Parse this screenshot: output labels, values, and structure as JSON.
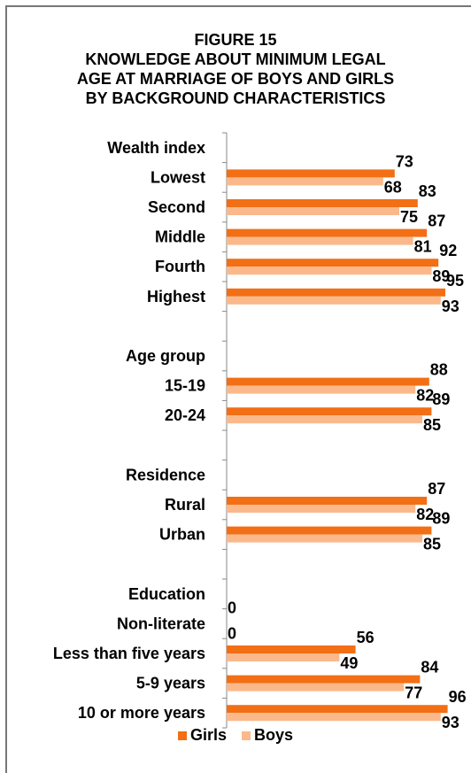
{
  "title_lines": [
    "FIGURE 15",
    "KNOWLEDGE ABOUT  MINIMUM LEGAL",
    "AGE AT MARRIAGE  OF BOYS AND GIRLS",
    "BY BACKGROUND CHARACTERISTICS"
  ],
  "colors": {
    "girls": "#f26f15",
    "boys": "#fbb98b",
    "axis": "#888888",
    "border": "#777777"
  },
  "chart_data": {
    "type": "bar",
    "orientation": "horizontal",
    "xlim": [
      0,
      100
    ],
    "grid": false,
    "legend_position": "bottom",
    "rows": [
      {
        "label": "Wealth index",
        "header": true
      },
      {
        "label": "Lowest",
        "girls": 73,
        "boys": 68
      },
      {
        "label": "Second",
        "girls": 83,
        "boys": 75
      },
      {
        "label": "Middle",
        "girls": 87,
        "boys": 81
      },
      {
        "label": "Fourth",
        "girls": 92,
        "boys": 89
      },
      {
        "label": "Highest",
        "girls": 95,
        "boys": 93
      },
      {
        "label": "",
        "spacer": true
      },
      {
        "label": "Age group ",
        "header": true
      },
      {
        "label": "15-19",
        "girls": 88,
        "boys": 82
      },
      {
        "label": "20-24",
        "girls": 89,
        "boys": 85
      },
      {
        "label": "",
        "spacer": true
      },
      {
        "label": "Residence",
        "header": true
      },
      {
        "label": "Rural",
        "girls": 87,
        "boys": 82
      },
      {
        "label": "Urban",
        "girls": 89,
        "boys": 85
      },
      {
        "label": "",
        "spacer": true
      },
      {
        "label": "Education",
        "header": true
      },
      {
        "label": "Non-literate",
        "girls": 0,
        "boys": 0
      },
      {
        "label": "Less than five years",
        "girls": 56,
        "boys": 49
      },
      {
        "label": "5-9 years",
        "girls": 84,
        "boys": 77
      },
      {
        "label": "10 or more years",
        "girls": 96,
        "boys": 93
      }
    ],
    "series": [
      {
        "name": "Girls",
        "key": "girls"
      },
      {
        "name": "Boys",
        "key": "boys"
      }
    ]
  }
}
